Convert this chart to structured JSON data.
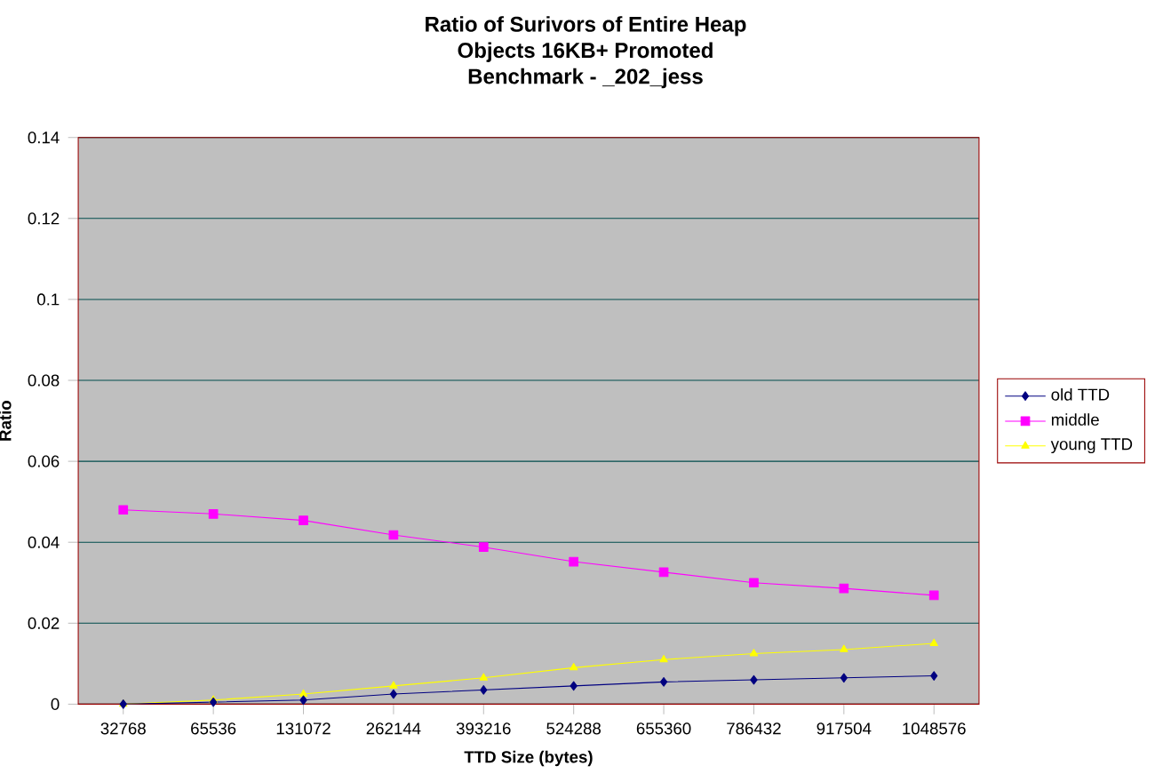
{
  "chart_data": {
    "type": "line",
    "title": "Ratio of Surivors of Entire Heap\nObjects 16KB+ Promoted\nBenchmark - _202_jess",
    "xlabel": "TTD Size (bytes)",
    "ylabel": "Ratio",
    "categories": [
      "32768",
      "65536",
      "131072",
      "262144",
      "393216",
      "524288",
      "655360",
      "786432",
      "917504",
      "1048576"
    ],
    "series": [
      {
        "name": "old TTD",
        "color": "#000080",
        "marker": "diamond",
        "values": [
          0,
          0.0005,
          0.001,
          0.0025,
          0.0035,
          0.0045,
          0.0055,
          0.006,
          0.0065,
          0.007
        ]
      },
      {
        "name": "middle",
        "color": "#ff00ff",
        "marker": "square",
        "values": [
          0.048,
          0.047,
          0.0454,
          0.0418,
          0.0388,
          0.0352,
          0.0326,
          0.03,
          0.0286,
          0.0269
        ]
      },
      {
        "name": "young TTD",
        "color": "#ffff00",
        "marker": "triangle",
        "values": [
          0,
          0.001,
          0.0025,
          0.0045,
          0.0065,
          0.009,
          0.011,
          0.0125,
          0.0135,
          0.015
        ]
      }
    ],
    "ylim": [
      0,
      0.14
    ],
    "yticks": [
      0,
      0.02,
      0.04,
      0.06,
      0.08,
      0.1,
      0.12,
      0.14
    ],
    "grid": "y",
    "legend": "right"
  }
}
